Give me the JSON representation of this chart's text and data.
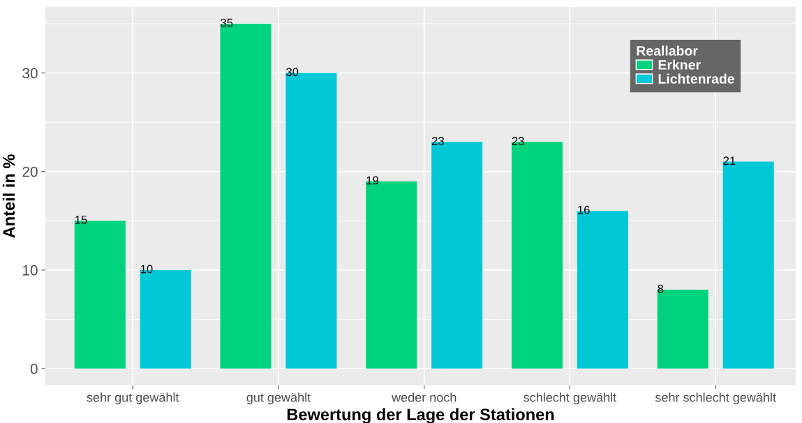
{
  "chart_data": {
    "type": "bar",
    "xlabel": "Bewertung der Lage der Stationen",
    "ylabel": "Anteil in %",
    "legend_title": "Reallabor",
    "categories": [
      "sehr gut gewählt",
      "gut gewählt",
      "weder noch",
      "schlecht gewählt",
      "sehr schlecht gewählt"
    ],
    "series": [
      {
        "name": "Erkner",
        "color": "#00d37e",
        "values": [
          15,
          35,
          19,
          23,
          8
        ]
      },
      {
        "name": "Lichtenrade",
        "color": "#00c8d7",
        "values": [
          10,
          30,
          23,
          16,
          21
        ]
      }
    ],
    "ylim": [
      -1.7,
      36.7
    ],
    "yticks": [
      0,
      10,
      20,
      30
    ],
    "grid": true,
    "legend": "top right",
    "data_labels": true
  }
}
